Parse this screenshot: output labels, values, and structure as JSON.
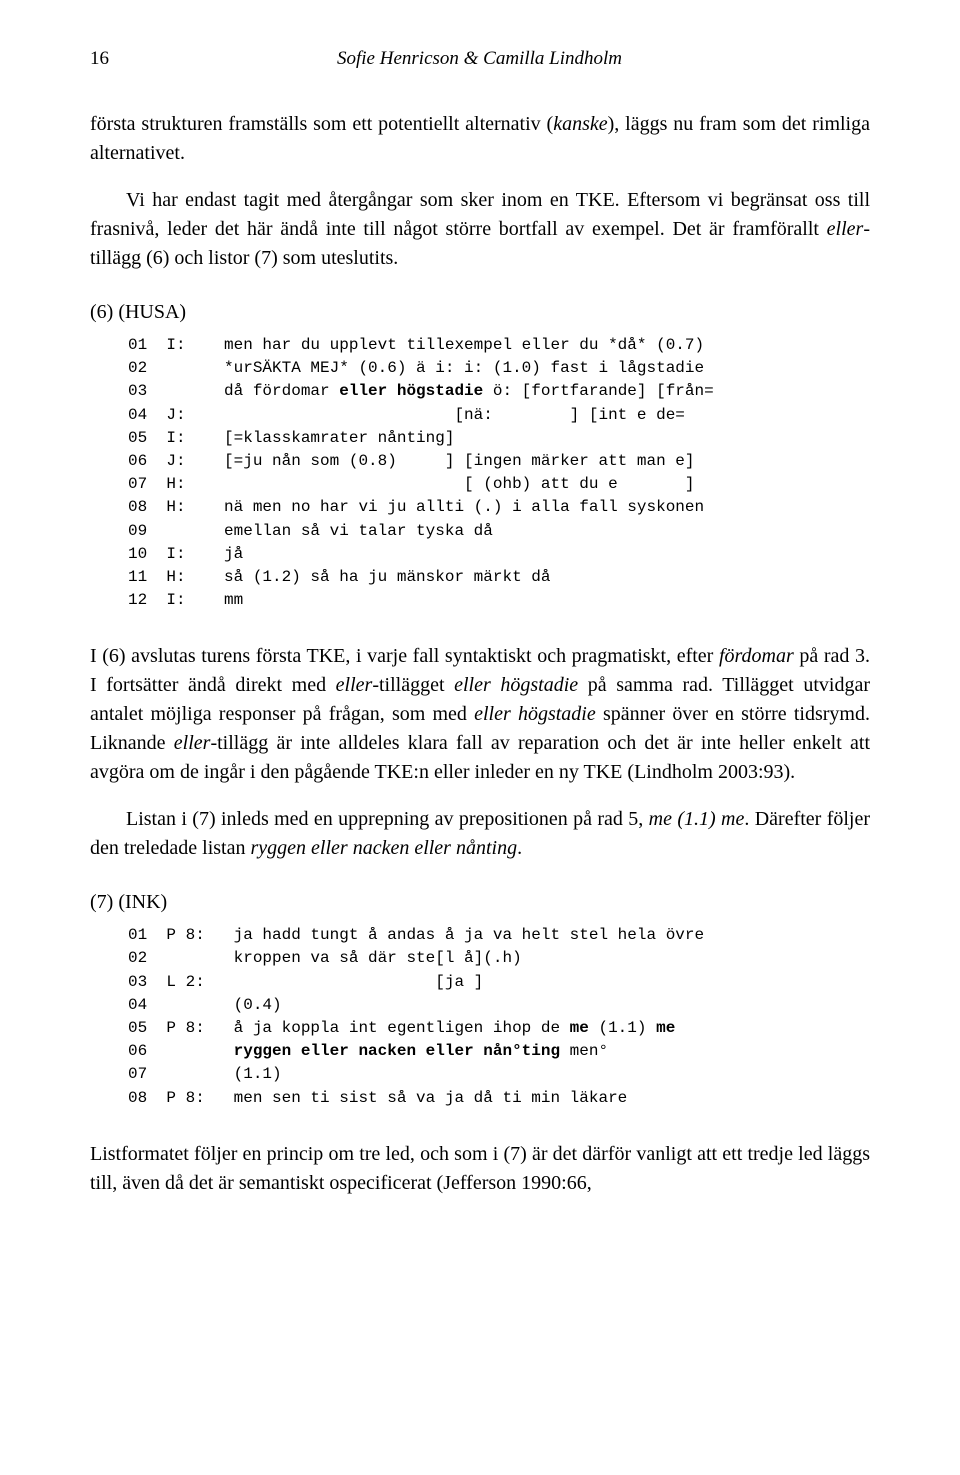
{
  "page_number": "16",
  "header_authors": "Sofie Henricson & Camilla Lindholm",
  "para1_html": "första strukturen framställs som ett potentiellt alternativ (<span class='italic'>kanske</span>), läggs nu fram som det rimliga alternativet.",
  "para2_html": "Vi har endast tagit med återgångar som sker inom en TKE. Eftersom vi begränsat oss till frasnivå, leder det här ändå inte till något större bortfall av exempel. Det är framförallt <span class='italic'>eller</span>-tillägg (6) och listor (7) som uteslutits.",
  "example6_label": "(6)    (HUSA)",
  "example6_lines": [
    {
      "num": "01",
      "sp": "I:",
      "text": "men har du upplevt tillexempel eller du *då* (0.7)"
    },
    {
      "num": "02",
      "sp": "",
      "text": "*urSÄKTA MEJ* (0.6) ä i: i: (1.0) fast i lågstadie"
    },
    {
      "num": "03",
      "sp": "",
      "text": "då fördomar <b>eller högstadie</b> ö: [fortfarande] [från="
    },
    {
      "num": "04",
      "sp": "J:",
      "text": "                        [nä:        ] [int e de="
    },
    {
      "num": "05",
      "sp": "I:",
      "text": "[=klasskamrater nånting]"
    },
    {
      "num": "06",
      "sp": "J:",
      "text": "[=ju nån som (0.8)     ] [ingen märker att man e]"
    },
    {
      "num": "07",
      "sp": "H:",
      "text": "                         [ (ohb) att du e       ]"
    },
    {
      "num": "08",
      "sp": "H:",
      "text": "nä men no har vi ju allti (.) i alla fall syskonen"
    },
    {
      "num": "09",
      "sp": "",
      "text": "emellan så vi talar tyska då"
    },
    {
      "num": "10",
      "sp": "I:",
      "text": "jå"
    },
    {
      "num": "11",
      "sp": "H:",
      "text": "så (1.2) så ha ju mänskor märkt då"
    },
    {
      "num": "12",
      "sp": "I:",
      "text": "mm"
    }
  ],
  "para3_html": "I (6) avslutas turens första TKE, i varje fall syntaktiskt och pragmatiskt, efter <span class='italic'>fördomar</span> på rad 3. I fortsätter ändå direkt med <span class='italic'>eller</span>-tillägget <span class='italic'>eller högstadie</span> på samma rad. Tillägget utvidgar antalet möjliga responser på frågan, som med <span class='italic'>eller högstadie</span> spänner över en större tidsrymd. Liknande <span class='italic'>eller</span>-tillägg är inte alldeles klara fall av reparation och det är inte heller enkelt att avgöra om de ingår i den pågående TKE:n eller inleder en ny TKE (Lindholm 2003:93).",
  "para4_html": "Listan i (7) inleds med en upprepning av prepositionen på rad 5, <span class='italic'>me (1.1) me</span>. Därefter följer den treledade listan <span class='italic'>ryggen eller nacken eller nånting</span>.",
  "example7_label": "(7)    (INK)",
  "example7_lines": [
    {
      "num": "01",
      "sp": "P 8:",
      "text": "ja hadd tungt å andas å ja va helt stel hela övre"
    },
    {
      "num": "02",
      "sp": "",
      "text": "kroppen va så där ste[l å](.h)"
    },
    {
      "num": "03",
      "sp": "L 2:",
      "text": "                     [ja ]"
    },
    {
      "num": "04",
      "sp": "",
      "text": "(0.4)"
    },
    {
      "num": "05",
      "sp": "P 8:",
      "text": "å ja koppla int egentligen ihop de <b>me</b> (1.1) <b>me</b>"
    },
    {
      "num": "06",
      "sp": "",
      "text": "<b>ryggen eller nacken eller nån°ting</b> men°"
    },
    {
      "num": "07",
      "sp": "",
      "text": "(1.1)"
    },
    {
      "num": "08",
      "sp": "P 8:",
      "text": "men sen ti sist så va ja då ti min läkare"
    }
  ],
  "para5_html": "Listformatet följer en princip om tre led, och som i (7) är det därför vanligt att ett tredje led läggs till, även då det är semantiskt ospecificerat (Jefferson 1990:66,"
}
